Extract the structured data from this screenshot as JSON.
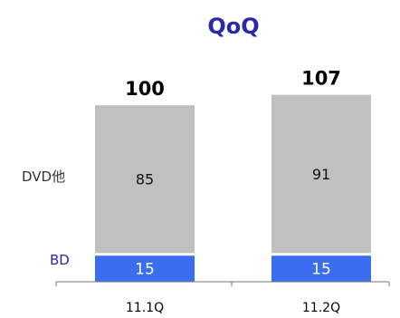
{
  "chart_data": {
    "type": "bar",
    "stacked": true,
    "title": "QoQ",
    "categories": [
      "11.1Q",
      "11.2Q"
    ],
    "series": [
      {
        "name": "BD",
        "values": [
          15,
          15
        ],
        "color": "#3a6df0"
      },
      {
        "name": "DVD他",
        "values": [
          85,
          91
        ],
        "color": "#c0c0c0"
      }
    ],
    "totals": [
      100,
      107
    ],
    "ylim": [
      0,
      110
    ],
    "grid": false,
    "legend": "left"
  }
}
